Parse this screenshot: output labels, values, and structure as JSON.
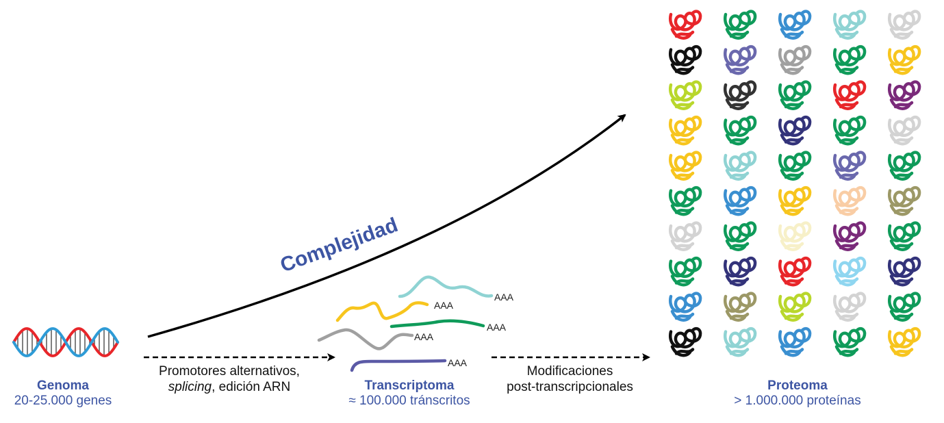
{
  "complexity_label": "Complejidad",
  "genome": {
    "title": "Genoma",
    "subtitle": "20-25.000 genes"
  },
  "transcriptome": {
    "title": "Transcriptoma",
    "subtitle": "≈ 100.000 tránscritos",
    "polyA_label": "AAA"
  },
  "proteome": {
    "title": "Proteoma",
    "subtitle": "> 1.000.000 proteínas"
  },
  "step1": {
    "line1": "Promotores alternativos,",
    "line2_italic": "splicing",
    "line2_rest": ", edición ARN"
  },
  "step2": {
    "line1": "Modificaciones",
    "line2": "post-transcripcionales"
  },
  "colors": {
    "accent_blue": "#3d55a3",
    "dna_red": "#e8262a",
    "dna_blue": "#2e9bd6"
  },
  "transcripts": [
    {
      "color": "#8fd3d3"
    },
    {
      "color": "#f7c51e"
    },
    {
      "color": "#0f9b5a"
    },
    {
      "color": "#a0a0a0"
    },
    {
      "color": "#5b5aa6"
    }
  ],
  "protein_grid": [
    [
      "#e8262a",
      "#0f9b5a",
      "#3a8fd0",
      "#8fd3d3",
      "#d3d3d3"
    ],
    [
      "#111111",
      "#6a68ad",
      "#a0a0a0",
      "#0f9b5a",
      "#f7c51e"
    ],
    [
      "#b9d72c",
      "#333333",
      "#0f9b5a",
      "#e8262a",
      "#7a2a7a"
    ],
    [
      "#f7c51e",
      "#0f9b5a",
      "#33337a",
      "#0f9b5a",
      "#d3d3d3"
    ],
    [
      "#f7c51e",
      "#8fd3d3",
      "#0f9b5a",
      "#6a68ad",
      "#0f9b5a"
    ],
    [
      "#0f9b5a",
      "#3a8fd0",
      "#f7c51e",
      "#f9cda5",
      "#9c9866"
    ],
    [
      "#d3d3d3",
      "#0f9b5a",
      "#f7f0c8",
      "#7a2a7a",
      "#0f9b5a"
    ],
    [
      "#0f9b5a",
      "#33337a",
      "#e8262a",
      "#8fd6f0",
      "#33337a"
    ],
    [
      "#3a8fd0",
      "#9c9866",
      "#b9d72c",
      "#d3d3d3",
      "#0f9b5a"
    ],
    [
      "#111111",
      "#8fd3d3",
      "#3a8fd0",
      "#0f9b5a",
      "#f7c51e"
    ]
  ]
}
